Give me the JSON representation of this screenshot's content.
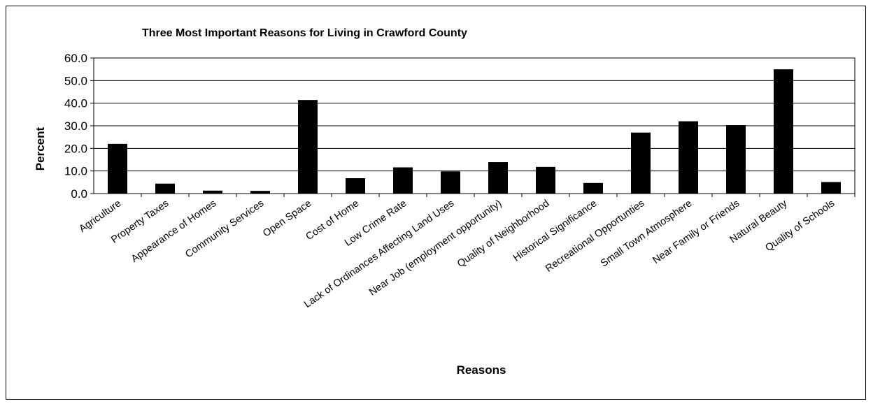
{
  "chart_data": {
    "type": "bar",
    "title": "Three Most Important Reasons for Living in Crawford County",
    "xlabel": "Reasons",
    "ylabel": "Percent",
    "ylim": [
      0,
      60
    ],
    "y_ticks": [
      "0.0",
      "10.0",
      "20.0",
      "30.0",
      "40.0",
      "50.0",
      "60.0"
    ],
    "grid": true,
    "legend": "none",
    "bar_color": "#000000",
    "categories": [
      "Agriculture",
      "Property Taxes",
      "Appearance of Homes",
      "Community Services",
      "Open Space",
      "Cost of Home",
      "Low Crime Rate",
      "Lack of Ordinances Affecting Land Uses",
      "Near Job (employment opportunity)",
      "Quality of Neighborhood",
      "Historical Significance",
      "Recreational Opportunties",
      "Small Town Atmosphere",
      "Near Family or Friends",
      "Natural Beauty",
      "Quality of Schools"
    ],
    "values": [
      22.0,
      4.4,
      1.3,
      1.2,
      41.4,
      6.8,
      11.6,
      9.8,
      13.9,
      11.8,
      4.7,
      27.0,
      32.0,
      30.3,
      55.0,
      5.1
    ]
  }
}
